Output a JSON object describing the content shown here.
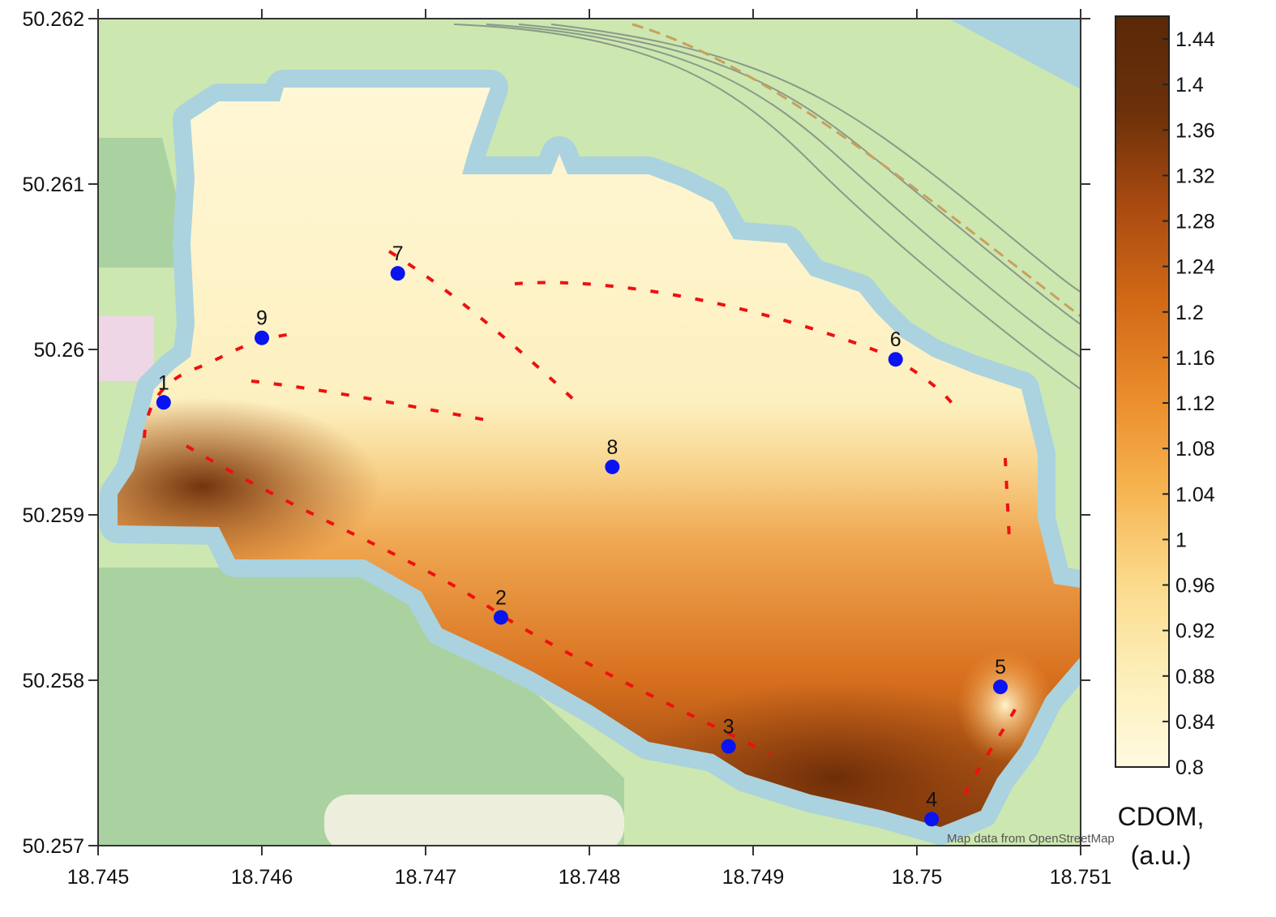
{
  "map": {
    "x_axis": {
      "lim": [
        18.745,
        18.751
      ],
      "ticks": [
        18.745,
        18.746,
        18.747,
        18.748,
        18.749,
        18.75,
        18.751
      ]
    },
    "y_axis": {
      "lim": [
        50.257,
        50.262
      ],
      "ticks": [
        50.257,
        50.258,
        50.259,
        50.26,
        50.261,
        50.262
      ]
    },
    "colorbar": {
      "lim": [
        0.8,
        1.46
      ],
      "ticks": [
        0.8,
        0.84,
        0.88,
        0.92,
        0.96,
        1,
        1.04,
        1.08,
        1.12,
        1.16,
        1.2,
        1.24,
        1.28,
        1.32,
        1.36,
        1.4,
        1.44
      ],
      "colormap": [
        "#fffbe0",
        "#fdeeb8",
        "#fbd98a",
        "#f6b24e",
        "#ea8a2a",
        "#d06816",
        "#a84a10",
        "#6b300a",
        "#5a2808"
      ],
      "label": [
        "CDOM,",
        "(a.u.)"
      ]
    },
    "points": [
      {
        "label": "1",
        "lon": 18.7454,
        "lat": 50.25968
      },
      {
        "label": "2",
        "lon": 18.74746,
        "lat": 50.25838
      },
      {
        "label": "3",
        "lon": 18.74885,
        "lat": 50.2576
      },
      {
        "label": "4",
        "lon": 18.75009,
        "lat": 50.25716
      },
      {
        "label": "5",
        "lon": 18.75051,
        "lat": 50.25796
      },
      {
        "label": "6",
        "lon": 18.74987,
        "lat": 50.25994
      },
      {
        "label": "7",
        "lon": 18.74683,
        "lat": 50.26046
      },
      {
        "label": "8",
        "lon": 18.74814,
        "lat": 50.25929
      },
      {
        "label": "9",
        "lon": 18.746,
        "lat": 50.26007
      }
    ],
    "point_color": "#0a14f0",
    "attribution": "Map data from OpenStreetMap"
  }
}
